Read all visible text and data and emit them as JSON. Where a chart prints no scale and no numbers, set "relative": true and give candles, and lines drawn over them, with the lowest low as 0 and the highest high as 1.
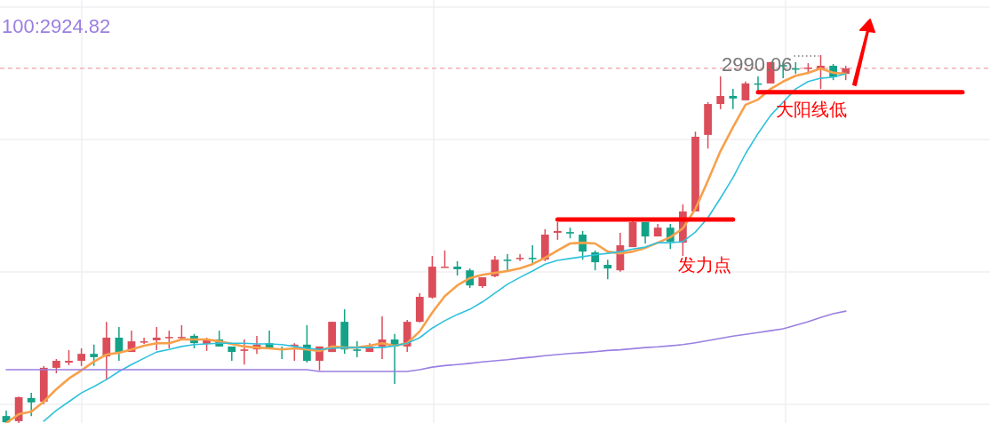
{
  "chart_data": {
    "type": "candlestick",
    "relative": true,
    "grid": true,
    "categories": [
      null,
      null,
      null,
      null,
      null,
      null,
      null,
      null,
      null,
      null,
      null,
      null,
      null,
      null,
      null,
      null,
      null,
      null,
      null,
      null,
      null,
      null,
      null,
      null,
      null,
      null,
      null,
      null,
      null,
      null,
      null,
      null,
      null,
      null,
      null,
      null,
      null,
      null,
      null,
      null,
      null,
      null,
      null,
      null,
      null,
      null,
      null,
      null,
      null,
      null,
      null,
      null,
      null,
      null,
      null,
      null,
      null,
      null,
      null,
      null,
      null,
      null,
      null,
      null,
      null,
      null,
      null,
      null
    ],
    "ohlc": [
      [
        0.019,
        0.034,
        0,
        0.002
      ],
      [
        0.005,
        0.072,
        0,
        0.07
      ],
      [
        0.068,
        0.082,
        0.019,
        0.056
      ],
      [
        0.058,
        0.155,
        0.051,
        0.15
      ],
      [
        0.15,
        0.174,
        0.135,
        0.169
      ],
      [
        0.164,
        0.198,
        0.157,
        0.169
      ],
      [
        0.169,
        0.203,
        0.155,
        0.188
      ],
      [
        0.188,
        0.213,
        0.155,
        0.179
      ],
      [
        0.181,
        0.275,
        0.118,
        0.232
      ],
      [
        0.232,
        0.261,
        0.169,
        0.191
      ],
      [
        0.193,
        0.251,
        0.193,
        0.222
      ],
      [
        0.22,
        0.232,
        0.215,
        0.222
      ],
      [
        0.225,
        0.261,
        0.198,
        0.232
      ],
      [
        0.232,
        0.251,
        0.203,
        0.234
      ],
      [
        0.232,
        0.266,
        0.227,
        0.234
      ],
      [
        0.237,
        0.242,
        0.203,
        0.217
      ],
      [
        0.215,
        0.232,
        0.196,
        0.227
      ],
      [
        0.227,
        0.251,
        0.208,
        0.208
      ],
      [
        0.208,
        0.208,
        0.169,
        0.193
      ],
      [
        0.196,
        0.227,
        0.159,
        0.2
      ],
      [
        0.2,
        0.237,
        0.188,
        0.213
      ],
      [
        0.217,
        0.251,
        0.203,
        0.203
      ],
      [
        0.203,
        0.208,
        0.174,
        0.2
      ],
      [
        0.208,
        0.217,
        0.169,
        0.213
      ],
      [
        0.213,
        0.266,
        0.164,
        0.169
      ],
      [
        0.169,
        0.208,
        0.143,
        0.208
      ],
      [
        0.193,
        0.275,
        0.193,
        0.275
      ],
      [
        0.275,
        0.309,
        0.188,
        0.2
      ],
      [
        0.2,
        0.222,
        0.179,
        0.196
      ],
      [
        0.193,
        0.217,
        0.193,
        0.208
      ],
      [
        0.208,
        0.29,
        0.174,
        0.227
      ],
      [
        0.227,
        0.242,
        0.106,
        0.208
      ],
      [
        0.208,
        0.28,
        0.193,
        0.275
      ],
      [
        0.275,
        0.353,
        0.273,
        0.343
      ],
      [
        0.341,
        0.454,
        0.338,
        0.425
      ],
      [
        0.423,
        0.469,
        0.423,
        0.425
      ],
      [
        0.425,
        0.44,
        0.401,
        0.418
      ],
      [
        0.415,
        0.42,
        0.367,
        0.374
      ],
      [
        0.372,
        0.396,
        0.367,
        0.396
      ],
      [
        0.399,
        0.454,
        0.396,
        0.444
      ],
      [
        0.444,
        0.459,
        0.415,
        0.442
      ],
      [
        0.447,
        0.459,
        0.44,
        0.449
      ],
      [
        0.449,
        0.483,
        0.435,
        0.447
      ],
      [
        0.444,
        0.527,
        0.44,
        0.512
      ],
      [
        0.517,
        0.546,
        0.498,
        0.522
      ],
      [
        0.519,
        0.531,
        0.502,
        0.515
      ],
      [
        0.512,
        0.522,
        0.444,
        0.466
      ],
      [
        0.464,
        0.469,
        0.415,
        0.437
      ],
      [
        0.43,
        0.444,
        0.391,
        0.42
      ],
      [
        0.415,
        0.517,
        0.411,
        0.483
      ],
      [
        0.478,
        0.551,
        0.478,
        0.546
      ],
      [
        0.546,
        0.546,
        0.488,
        0.507
      ],
      [
        0.507,
        0.541,
        0.507,
        0.531
      ],
      [
        0.531,
        0.541,
        0.473,
        0.493
      ],
      [
        0.49,
        0.594,
        0.454,
        0.575
      ],
      [
        0.575,
        0.792,
        0.575,
        0.778
      ],
      [
        0.783,
        0.872,
        0.746,
        0.867
      ],
      [
        0.867,
        0.942,
        0.853,
        0.889
      ],
      [
        0.889,
        0.908,
        0.853,
        0.882
      ],
      [
        0.877,
        0.928,
        0.877,
        0.923
      ],
      [
        0.923,
        0.942,
        0.901,
        0.92
      ],
      [
        0.923,
        0.981,
        0.923,
        0.981
      ],
      [
        0.973,
        0.981,
        0.937,
        0.969
      ],
      [
        0.964,
        0.981,
        0.949,
        0.961
      ],
      [
        0.964,
        0.978,
        0.949,
        0.966
      ],
      [
        0.964,
        1,
        0.908,
        0.971
      ],
      [
        0.971,
        0.976,
        0.932,
        0.94
      ],
      [
        0.949,
        0.971,
        0.932,
        0.964
      ]
    ],
    "colors": [
      "#13a287",
      "#dc4d5a",
      "#13a287",
      "#dc4d5a",
      "#dc4d5a",
      "#dc4d5a",
      "#dc4d5a",
      "#13a287",
      "#dc4d5a",
      "#13a287",
      "#dc4d5a",
      "#dc4d5a",
      "#dc4d5a",
      "#dc4d5a",
      "#dc4d5a",
      "#13a287",
      "#dc4d5a",
      "#13a287",
      "#13a287",
      "#dc4d5a",
      "#dc4d5a",
      "#13a287",
      "#13a287",
      "#dc4d5a",
      "#13a287",
      "#dc4d5a",
      "#dc4d5a",
      "#13a287",
      "#13a287",
      "#dc4d5a",
      "#dc4d5a",
      "#13a287",
      "#dc4d5a",
      "#dc4d5a",
      "#dc4d5a",
      "#dc4d5a",
      "#13a287",
      "#13a287",
      "#dc4d5a",
      "#dc4d5a",
      "#13a287",
      "#dc4d5a",
      "#13a287",
      "#dc4d5a",
      "#dc4d5a",
      "#13a287",
      "#13a287",
      "#13a287",
      "#13a287",
      "#dc4d5a",
      "#dc4d5a",
      "#13a287",
      "#dc4d5a",
      "#13a287",
      "#dc4d5a",
      "#dc4d5a",
      "#dc4d5a",
      "#dc4d5a",
      "#13a287",
      "#dc4d5a",
      "#13a287",
      "#dc4d5a",
      "#13a287",
      "#13a287",
      "#dc4d5a",
      "#dc4d5a",
      "#13a287",
      "#dc4d5a"
    ],
    "series": [
      {
        "type": "line",
        "color": "#f7a04b",
        "values": [
          0,
          0.024,
          0.031,
          0.058,
          0.092,
          0.121,
          0.143,
          0.167,
          0.186,
          0.191,
          0.2,
          0.21,
          0.217,
          0.217,
          0.227,
          0.227,
          0.227,
          0.222,
          0.215,
          0.208,
          0.205,
          0.203,
          0.2,
          0.203,
          0.2,
          0.196,
          0.208,
          0.205,
          0.205,
          0.21,
          0.217,
          0.21,
          0.217,
          0.249,
          0.3,
          0.345,
          0.374,
          0.394,
          0.403,
          0.408,
          0.413,
          0.42,
          0.432,
          0.449,
          0.469,
          0.488,
          0.49,
          0.488,
          0.466,
          0.461,
          0.466,
          0.476,
          0.49,
          0.505,
          0.529,
          0.582,
          0.659,
          0.739,
          0.804,
          0.865,
          0.879,
          0.908,
          0.928,
          0.944,
          0.952,
          0.964,
          0.952,
          0.949
        ]
      },
      {
        "type": "line",
        "color": "#2ec1dc",
        "values": [
          null,
          null,
          null,
          0.005,
          0.034,
          0.058,
          0.082,
          0.099,
          0.118,
          0.14,
          0.159,
          0.176,
          0.193,
          0.2,
          0.208,
          0.213,
          0.215,
          0.217,
          0.217,
          0.217,
          0.215,
          0.215,
          0.213,
          0.208,
          0.203,
          0.2,
          0.203,
          0.205,
          0.205,
          0.205,
          0.205,
          0.21,
          0.217,
          0.232,
          0.258,
          0.278,
          0.295,
          0.309,
          0.329,
          0.353,
          0.377,
          0.396,
          0.413,
          0.432,
          0.442,
          0.447,
          0.452,
          0.457,
          0.461,
          0.466,
          0.473,
          0.478,
          0.49,
          0.49,
          0.493,
          0.519,
          0.558,
          0.611,
          0.667,
          0.732,
          0.787,
          0.836,
          0.872,
          0.908,
          0.928,
          0.937,
          0.94,
          0.949
        ]
      },
      {
        "type": "line",
        "color": "#9b7fe0",
        "values": [
          0.145,
          0.145,
          0.145,
          0.145,
          0.145,
          0.145,
          0.145,
          0.145,
          0.145,
          0.145,
          0.145,
          0.145,
          0.145,
          0.145,
          0.145,
          0.145,
          0.145,
          0.145,
          0.145,
          0.145,
          0.145,
          0.145,
          0.145,
          0.145,
          0.145,
          0.14,
          0.14,
          0.14,
          0.14,
          0.14,
          0.14,
          0.14,
          0.14,
          0.145,
          0.152,
          0.156,
          0.159,
          0.162,
          0.166,
          0.169,
          0.172,
          0.176,
          0.179,
          0.183,
          0.186,
          0.189,
          0.191,
          0.194,
          0.197,
          0.199,
          0.202,
          0.205,
          0.207,
          0.21,
          0.213,
          0.218,
          0.224,
          0.23,
          0.236,
          0.241,
          0.246,
          0.251,
          0.256,
          0.266,
          0.275,
          0.287,
          0.297,
          0.304
        ]
      },
      {
        "type": "line",
        "color": "#ff0000",
        "values": [
          null,
          null,
          null,
          null,
          null,
          null,
          null,
          null,
          null,
          null,
          null,
          null,
          null,
          null,
          null,
          null,
          null,
          null,
          null,
          null,
          null,
          null,
          null,
          null,
          null,
          null,
          null,
          null,
          null,
          null,
          null,
          null,
          null,
          null,
          null,
          null,
          null,
          null,
          null,
          null,
          null,
          null,
          null,
          null,
          0.553,
          0.553,
          0.553,
          0.553,
          0.553,
          0.553,
          0.553,
          0.553,
          0.553,
          0.553,
          0.553,
          0.553,
          0.553,
          0.553,
          0.553,
          null,
          null,
          null,
          null,
          null,
          null,
          null,
          null,
          null
        ]
      },
      {
        "type": "line",
        "color": "#ff0000",
        "values": [
          null,
          null,
          null,
          null,
          null,
          null,
          null,
          null,
          null,
          null,
          null,
          null,
          null,
          null,
          null,
          null,
          null,
          null,
          null,
          null,
          null,
          null,
          null,
          null,
          null,
          null,
          null,
          null,
          null,
          null,
          null,
          null,
          null,
          null,
          null,
          null,
          null,
          null,
          null,
          null,
          null,
          null,
          null,
          null,
          null,
          null,
          null,
          null,
          null,
          null,
          null,
          null,
          null,
          null,
          null,
          null,
          null,
          null,
          null,
          null,
          0.899,
          0.899,
          0.899,
          0.899,
          0.899,
          0.899,
          0.899,
          0.899
        ]
      }
    ],
    "ref_lines": [
      {
        "axis": "y",
        "value": 0.964,
        "color": "#f2a3a3",
        "line_style": "dashed"
      }
    ],
    "annotations": [
      "100:2924.82",
      "2990.06",
      "发力点",
      "大阳线低"
    ]
  }
}
